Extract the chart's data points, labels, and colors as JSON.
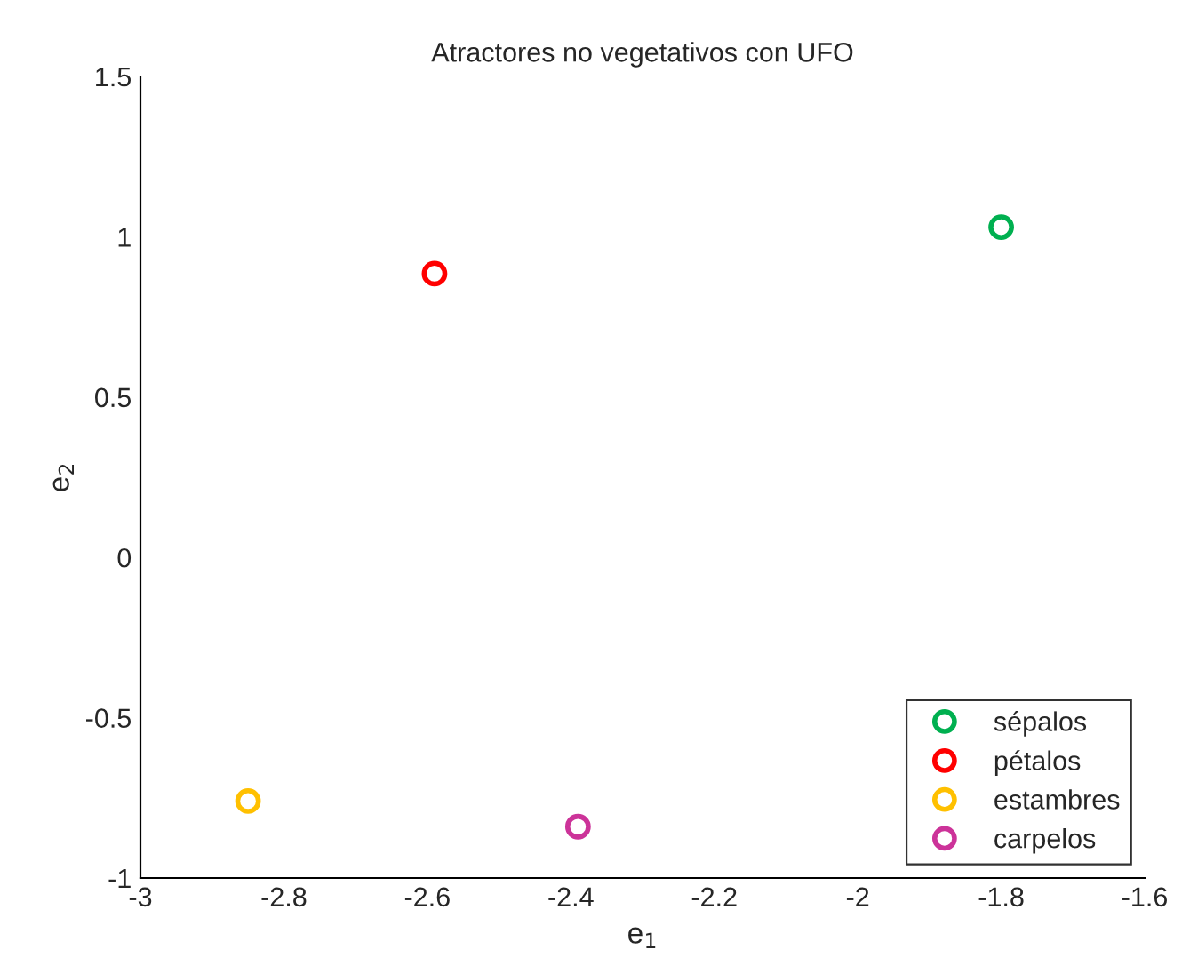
{
  "chart_data": {
    "type": "scatter",
    "title": "Atractores no vegetativos con UFO",
    "xlabel": "e$_{1}$",
    "ylabel": "e$_{2}$",
    "series": [
      {
        "name": "sépalos",
        "color": "#00b050",
        "x": [
          -1.8
        ],
        "values": [
          1.03
        ]
      },
      {
        "name": "pétalos",
        "color": "#ff0000",
        "x": [
          -2.59
        ],
        "values": [
          0.885
        ]
      },
      {
        "name": "estambres",
        "color": "#ffc000",
        "x": [
          -2.85
        ],
        "values": [
          -0.76
        ]
      },
      {
        "name": "carpelos",
        "color": "#cc3399",
        "x": [
          -2.39
        ],
        "values": [
          -0.84
        ]
      }
    ],
    "xlim": [
      -3,
      -1.6
    ],
    "xticks": [
      -3,
      -2.8,
      -2.6,
      -2.4,
      -2.2,
      -2,
      -1.8,
      -1.6
    ],
    "ylim": [
      -1,
      1.5
    ],
    "yticks": [
      -1,
      -0.5,
      0,
      0.5,
      1,
      1.5
    ],
    "marker": "circle",
    "legend": "bottom right",
    "grid": false
  }
}
